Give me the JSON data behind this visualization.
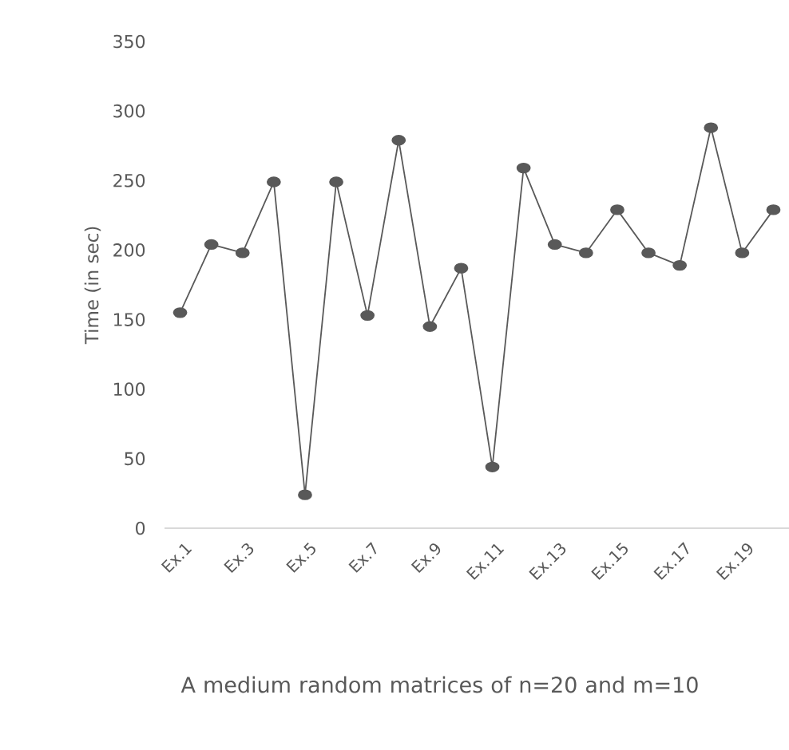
{
  "chart_data": {
    "type": "line",
    "xlabel": "A medium random matrices of n=20 and m=10",
    "ylabel": "Time (in sec)",
    "categories": [
      "Ex.1",
      null,
      "Ex.3",
      null,
      "Ex.5",
      null,
      "Ex.7",
      null,
      "Ex.9",
      null,
      "Ex.11",
      null,
      "Ex.13",
      null,
      "Ex.15",
      null,
      "Ex.17",
      null,
      "Ex.19",
      null
    ],
    "series": [
      {
        "color": "#595959",
        "values": [
          155,
          204,
          198,
          249,
          24,
          249,
          153,
          279,
          145,
          187,
          44,
          259,
          204,
          198,
          229,
          198,
          189,
          288,
          198,
          229
        ]
      }
    ],
    "ylim": [
      0,
      350
    ],
    "yticks": [
      0,
      50,
      100,
      150,
      200,
      250,
      300,
      350
    ],
    "marker": "circle",
    "line_style": "solid"
  }
}
